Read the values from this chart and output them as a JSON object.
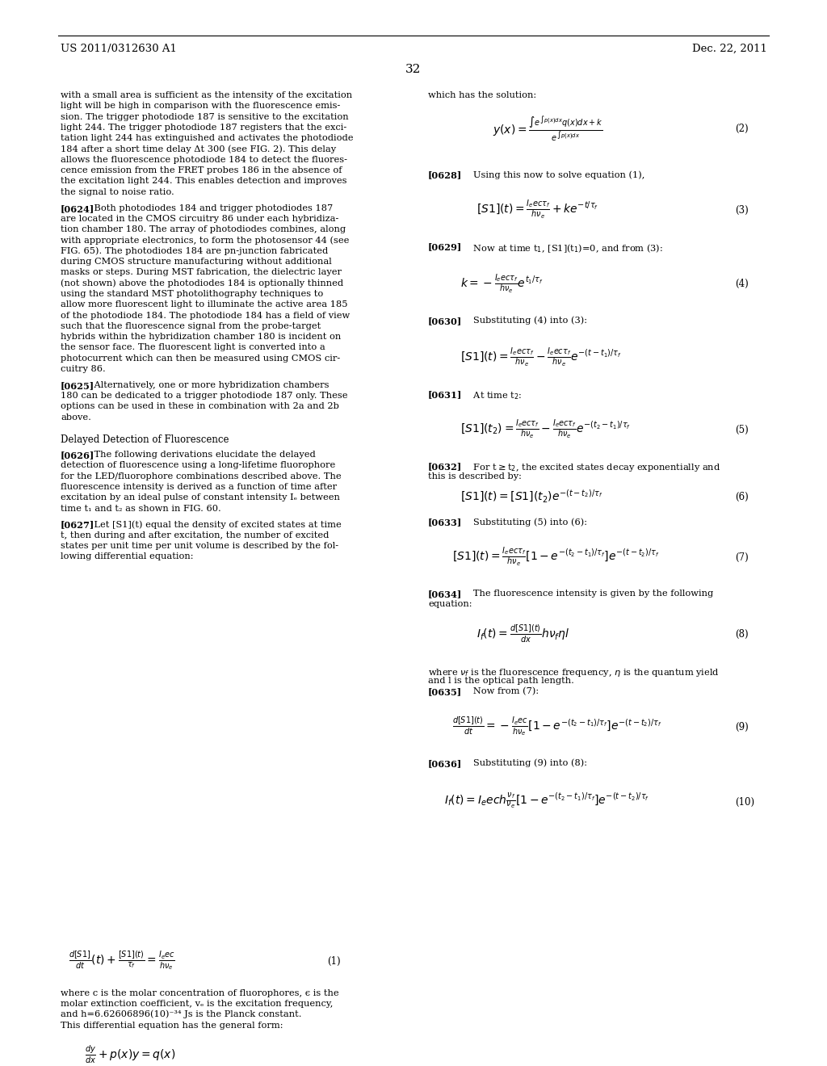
{
  "patent_number": "US 2011/0312630 A1",
  "date": "Dec. 22, 2011",
  "page_number": "32",
  "background_color": "#ffffff",
  "text_color": "#000000",
  "left_column": [
    "with a small area is sufficient as the intensity of the excitation",
    "light will be high in comparison with the fluorescence emis-",
    "sion. The trigger photodiode 187 is sensitive to the excitation",
    "light 244. The trigger photodiode 187 registers that the exci-",
    "tation light 244 has extinguished and activates the photodiode",
    "184 after a short time delay Δt 300 (see FIG. 2). This delay",
    "allows the fluorescence photodiode 184 to detect the fluores-",
    "cence emission from the FRET probes 186 in the absence of",
    "the excitation light 244. This enables detection and improves",
    "the signal to noise ratio.",
    "",
    "[0624]    Both photodiodes 184 and trigger photodiodes 187",
    "are located in the CMOS circuitry 86 under each hybridiza-",
    "tion chamber 180. The array of photodiodes combines, along",
    "with appropriate electronics, to form the photosensor 44 (see",
    "FIG. 65). The photodiodes 184 are pn-junction fabricated",
    "during CMOS structure manufacturing without additional",
    "masks or steps. During MST fabrication, the dielectric layer",
    "(not shown) above the photodiodes 184 is optionally thinned",
    "using the standard MST photolithography techniques to",
    "allow more fluorescent light to illuminate the active area 185",
    "of the photodiode 184. The photodiode 184 has a field of view",
    "such that the fluorescence signal from the probe-target",
    "hybrids within the hybridization chamber 180 is incident on",
    "the sensor face. The fluorescent light is converted into a",
    "photocurrent which can then be measured using CMOS cir-",
    "cuitry 86.",
    "",
    "[0625]    Alternatively, one or more hybridization chambers",
    "180 can be dedicated to a trigger photodiode 187 only. These",
    "options can be used in these in combination with 2a and 2b",
    "above.",
    "",
    "",
    "Delayed Detection of Fluorescence",
    "",
    "[0626]    The following derivations elucidate the delayed",
    "detection of fluorescence using a long-lifetime fluorophore",
    "for the LED/fluorophore combinations described above. The",
    "fluorescence intensity is derived as a function of time after",
    "excitation by an ideal pulse of constant intensity Iₑ between",
    "time t₁ and t₂ as shown in FIG. 60.",
    "",
    "[0627]    Let [S1](t) equal the density of excited states at time",
    "t, then during and after excitation, the number of excited",
    "states per unit time per unit volume is described by the fol-",
    "lowing differential equation:"
  ],
  "right_column": [
    "which has the solution:"
  ],
  "eq2_label": "(2)",
  "eq3_label": "(3)",
  "eq4_label": "(4)",
  "eq5_label": "(5)",
  "eq6_label": "(6)",
  "eq7_label": "(7)",
  "eq8_label": "(8)",
  "eq9_label": "(9)",
  "eq10_label": "(10)"
}
